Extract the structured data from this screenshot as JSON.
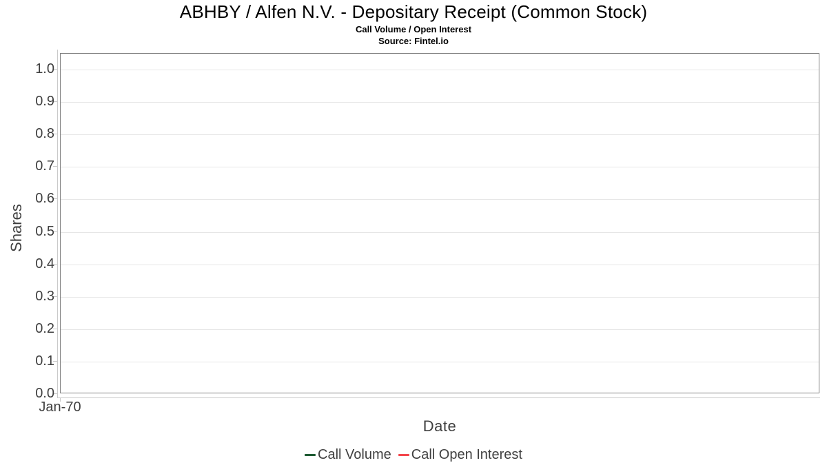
{
  "chart_data": {
    "type": "line",
    "title": "ABHBY / Alfen N.V. - Depositary Receipt (Common Stock)",
    "subtitle": "Call Volume / Open Interest",
    "source": "Source: Fintel.io",
    "xlabel": "Date",
    "ylabel": "Shares",
    "x_ticks": [
      "Jan-70"
    ],
    "y_ticks": [
      "0.0",
      "0.1",
      "0.2",
      "0.3",
      "0.4",
      "0.5",
      "0.6",
      "0.7",
      "0.8",
      "0.9",
      "1.0"
    ],
    "ylim": [
      0.0,
      1.05
    ],
    "grid": true,
    "legend_position": "bottom",
    "series": [
      {
        "name": "Call Volume",
        "color": "#1e5b33",
        "values": []
      },
      {
        "name": "Call Open Interest",
        "color": "#f4474d",
        "values": []
      }
    ]
  }
}
